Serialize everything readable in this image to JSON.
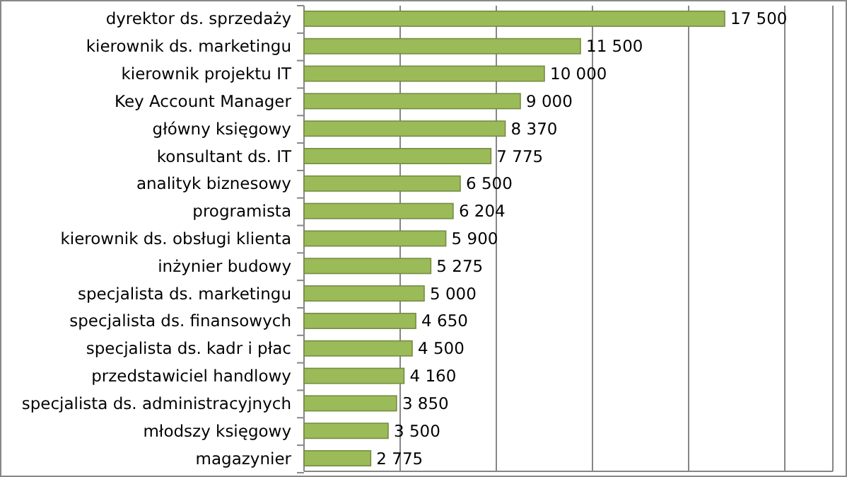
{
  "chart_data": {
    "type": "bar",
    "orientation": "horizontal",
    "categories": [
      "dyrektor ds. sprzedaży",
      "kierownik ds. marketingu",
      "kierownik projektu IT",
      "Key Account Manager",
      "główny księgowy",
      "konsultant ds. IT",
      "analityk biznesowy",
      "programista",
      "kierownik ds. obsługi klienta",
      "inżynier budowy",
      "specjalista ds. marketingu",
      "specjalista ds. finansowych",
      "specjalista ds. kadr i płac",
      "przedstawiciel handlowy",
      "specjalista ds. administracyjnych",
      "młodszy księgowy",
      "magazynier"
    ],
    "values": [
      17500,
      11500,
      10000,
      9000,
      8370,
      7775,
      6500,
      6204,
      5900,
      5275,
      5000,
      4650,
      4500,
      4160,
      3850,
      3500,
      2775
    ],
    "value_labels": [
      "17 500",
      "11 500",
      "10 000",
      "9 000",
      "8 370",
      "7 775",
      "6 500",
      "6 204",
      "5 900",
      "5 275",
      "5 000",
      "4 650",
      "4 500",
      "4 160",
      "3 850",
      "3 500",
      "2 775"
    ],
    "color": "#9bbb59",
    "xlim": [
      0,
      22000
    ],
    "xticks": [
      {
        "value": 0,
        "label": null
      },
      {
        "value": 4000,
        "label": null
      },
      {
        "value": 8000,
        "label": null
      },
      {
        "value": 12000,
        "label": null
      },
      {
        "value": 16000,
        "label": null
      },
      {
        "value": 20000,
        "label": null
      }
    ],
    "grid": "x"
  }
}
